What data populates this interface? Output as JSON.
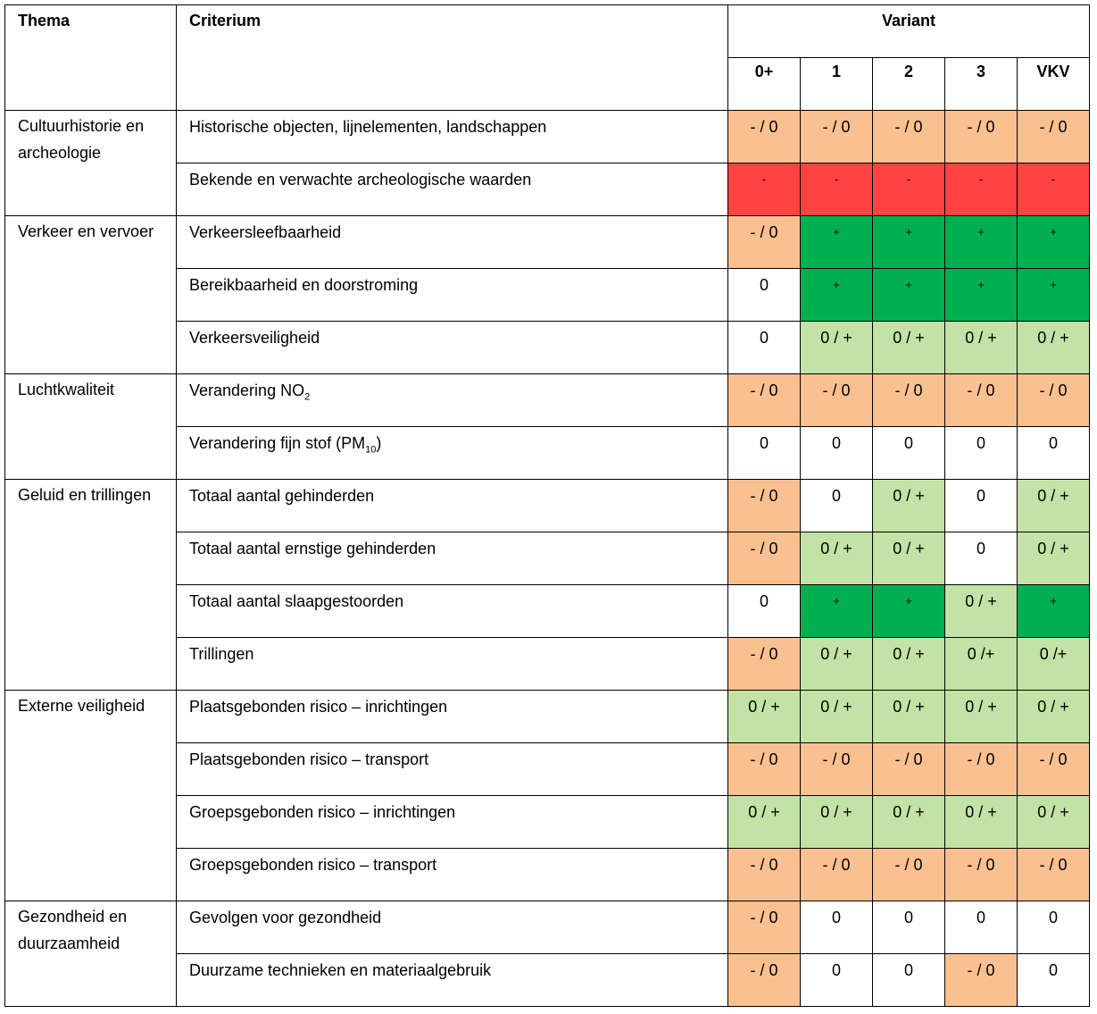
{
  "headers": {
    "thema": "Thema",
    "criterium": "Criterium",
    "variant": "Variant",
    "variants": [
      "0+",
      "1",
      "2",
      "3",
      "VKV"
    ]
  },
  "legend_colors": {
    "- / 0": "#fac090",
    "-": "#ff4343",
    "+": "#00b050",
    "0 / +": "#c3e2a5",
    "0": "#ffffff"
  },
  "groups": [
    {
      "thema": "Cultuurhistorie en archeologie",
      "rows": [
        {
          "criterium": "Historische objecten, lijnelementen, landschappen",
          "values": [
            "- / 0",
            "- / 0",
            "- / 0",
            "- / 0",
            "- / 0"
          ],
          "colors": [
            "orange",
            "orange",
            "orange",
            "orange",
            "orange"
          ]
        },
        {
          "criterium": "Bekende en verwachte archeologische waarden",
          "values": [
            "-",
            "-",
            "-",
            "-",
            "-"
          ],
          "colors": [
            "red",
            "red",
            "red",
            "red",
            "red"
          ]
        }
      ]
    },
    {
      "thema": "Verkeer en vervoer",
      "rows": [
        {
          "criterium": "Verkeersleefbaarheid",
          "values": [
            "- / 0",
            "+",
            "+",
            "+",
            "+"
          ],
          "colors": [
            "orange",
            "dgreen",
            "dgreen",
            "dgreen",
            "dgreen"
          ]
        },
        {
          "criterium": "Bereikbaarheid en doorstroming",
          "values": [
            "0",
            "+",
            "+",
            "+",
            "+"
          ],
          "colors": [
            "white",
            "dgreen",
            "dgreen",
            "dgreen",
            "dgreen"
          ]
        },
        {
          "criterium": "Verkeersveiligheid",
          "values": [
            "0",
            "0 / +",
            "0 / +",
            "0 / +",
            "0 / +"
          ],
          "colors": [
            "white",
            "lgreen",
            "lgreen",
            "lgreen",
            "lgreen"
          ]
        }
      ]
    },
    {
      "thema": "Luchtkwaliteit",
      "rows": [
        {
          "criterium": "Verandering NO",
          "criterium_sub": "2",
          "criterium_after": "",
          "values": [
            "- / 0",
            "- / 0",
            "- / 0",
            "- / 0",
            "- / 0"
          ],
          "colors": [
            "orange",
            "orange",
            "orange",
            "orange",
            "orange"
          ]
        },
        {
          "criterium": "Verandering fijn stof (PM",
          "criterium_sub": "10",
          "criterium_after": ")",
          "values": [
            "0",
            "0",
            "0",
            "0",
            "0"
          ],
          "colors": [
            "white",
            "white",
            "white",
            "white",
            "white"
          ]
        }
      ]
    },
    {
      "thema": "Geluid en trillingen",
      "rows": [
        {
          "criterium": "Totaal aantal gehinderden",
          "values": [
            "- / 0",
            "0",
            "0 / +",
            "0",
            "0 / +"
          ],
          "colors": [
            "orange",
            "white",
            "lgreen",
            "white",
            "lgreen"
          ]
        },
        {
          "criterium": "Totaal aantal ernstige gehinderden",
          "values": [
            "- / 0",
            "0 / +",
            "0 / +",
            "0",
            "0 / +"
          ],
          "colors": [
            "orange",
            "lgreen",
            "lgreen",
            "white",
            "lgreen"
          ]
        },
        {
          "criterium": "Totaal aantal slaapgestoorden",
          "values": [
            "0",
            "+",
            "+",
            "0 / +",
            "+"
          ],
          "colors": [
            "white",
            "dgreen",
            "dgreen",
            "lgreen",
            "dgreen"
          ]
        },
        {
          "criterium": "Trillingen",
          "values": [
            "- / 0",
            "0 / +",
            "0 / +",
            "0 /+",
            "0 /+"
          ],
          "colors": [
            "orange",
            "lgreen",
            "lgreen",
            "lgreen",
            "lgreen"
          ]
        }
      ]
    },
    {
      "thema": "Externe veiligheid",
      "rows": [
        {
          "criterium": "Plaatsgebonden risico – inrichtingen",
          "values": [
            "0 / +",
            "0 / +",
            "0 / +",
            "0 / +",
            "0 / +"
          ],
          "colors": [
            "lgreen",
            "lgreen",
            "lgreen",
            "lgreen",
            "lgreen"
          ]
        },
        {
          "criterium": "Plaatsgebonden risico – transport",
          "values": [
            "- / 0",
            "- / 0",
            "- / 0",
            "- / 0",
            "- / 0"
          ],
          "colors": [
            "orange",
            "orange",
            "orange",
            "orange",
            "orange"
          ]
        },
        {
          "criterium": "Groepsgebonden risico – inrichtingen",
          "values": [
            "0 / +",
            "0 / +",
            "0 / +",
            "0 / +",
            "0 / +"
          ],
          "colors": [
            "lgreen",
            "lgreen",
            "lgreen",
            "lgreen",
            "lgreen"
          ]
        },
        {
          "criterium": "Groepsgebonden risico – transport",
          "values": [
            "- / 0",
            "- / 0",
            "- / 0",
            "- / 0",
            "- / 0"
          ],
          "colors": [
            "orange",
            "orange",
            "orange",
            "orange",
            "orange"
          ]
        }
      ]
    },
    {
      "thema": "Gezondheid en duurzaamheid",
      "rows": [
        {
          "criterium": "Gevolgen voor gezondheid",
          "values": [
            "- / 0",
            "0",
            "0",
            "0",
            "0"
          ],
          "colors": [
            "orange",
            "white",
            "white",
            "white",
            "white"
          ]
        },
        {
          "criterium": "Duurzame technieken en materiaalgebruik",
          "values": [
            "- / 0",
            "0",
            "0",
            "- / 0",
            "0"
          ],
          "colors": [
            "orange",
            "white",
            "white",
            "orange",
            "white"
          ]
        }
      ]
    }
  ]
}
